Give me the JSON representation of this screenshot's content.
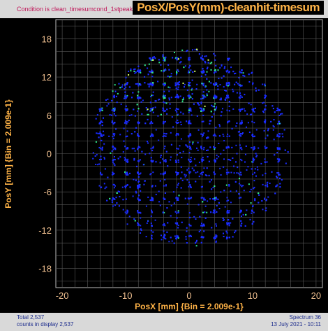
{
  "header": {
    "condition": "Condition is clean_timesumcond_1stpeak",
    "title": "PosX/PosY(mm)-cleanhit-timesum"
  },
  "footer": {
    "total": "Total 2,537",
    "counts_in_display": "counts in display 2,537",
    "spectrum": "Spectrum 36",
    "date": "13 July 2021 - 10:11"
  },
  "colors": {
    "background": "#000000",
    "plot_background": "#000000",
    "grid": "#5a5a5a",
    "axis_text": "#f0c090",
    "axis_label": "#ffb347",
    "low_count": "#1a2cff",
    "mid_count": "#2ee88a",
    "high_count": "#d8ff60"
  },
  "chart_data": {
    "type": "heatmap",
    "title": "PosX/PosY(mm)-cleanhit-timesum",
    "xlabel": "PosX [mm] {Bin = 2.009e-1}",
    "ylabel": "PosY [mm] {Bin = 2.009e-1}",
    "xlim": [
      -21,
      21
    ],
    "ylim": [
      -21,
      21
    ],
    "xticks": [
      -20,
      -10,
      0,
      10,
      20
    ],
    "xtick_labels": [
      "-20",
      "-10",
      "0",
      "10",
      "20"
    ],
    "yticks": [
      18,
      12,
      6,
      0,
      -6,
      -12,
      -18
    ],
    "ytick_labels": [
      "18",
      "12",
      "6",
      "0",
      "-6",
      "-12",
      "-18"
    ],
    "grid": true,
    "total_counts": 2537,
    "distribution": {
      "shape": "disk",
      "center": [
        0,
        1
      ],
      "radius": 15.5,
      "dense_region": "upper-left",
      "pattern": "grid-like clusters every ~2 mm"
    }
  }
}
